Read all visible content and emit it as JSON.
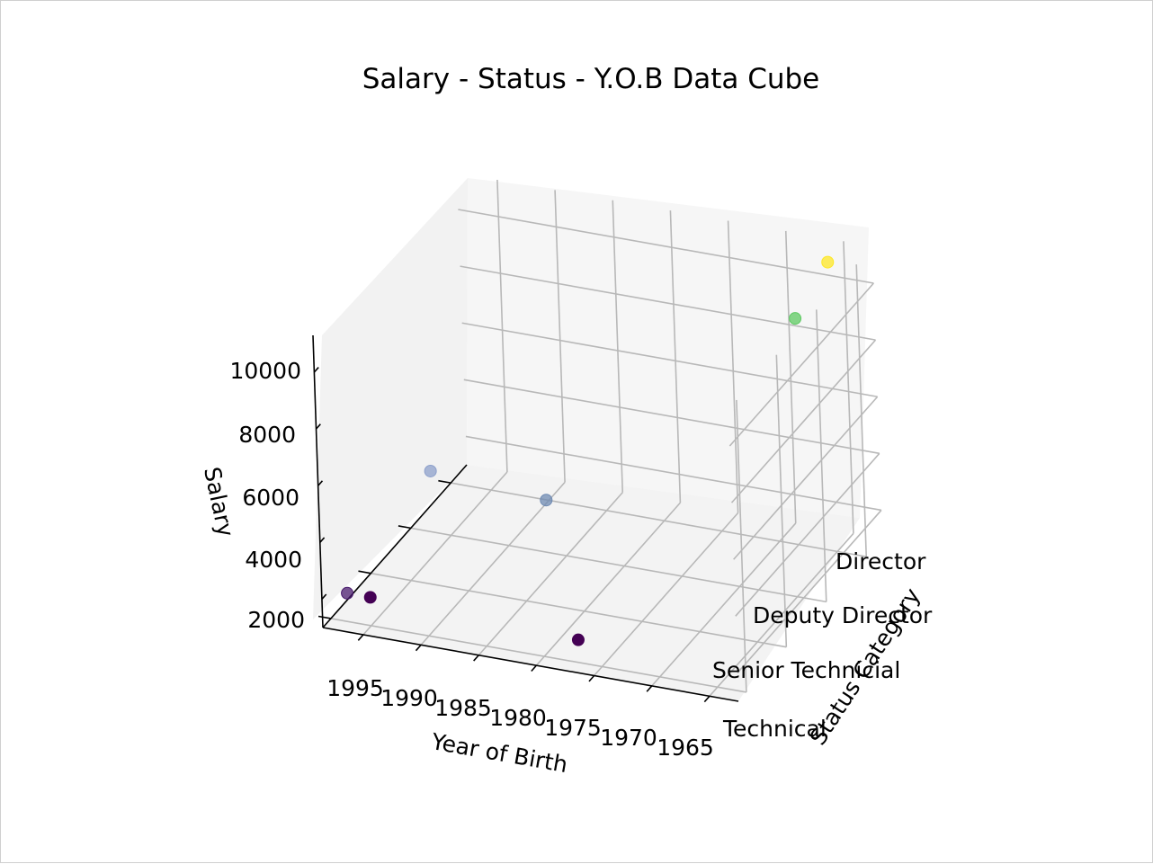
{
  "chart_data": {
    "type": "scatter",
    "title": "Salary - Status - Y.O.B Data Cube",
    "xlabel": "Year of Birth",
    "ylabel": "Status Category",
    "zlabel": "Salary",
    "x_ticks": [
      "1995",
      "1990",
      "1985",
      "1980",
      "1975",
      "1970",
      "1965"
    ],
    "y_ticks": [
      "Technical",
      "Senior Technicial",
      "Deputy Director",
      "Director"
    ],
    "z_ticks": [
      "2000",
      "4000",
      "6000",
      "8000",
      "10000"
    ],
    "points": [
      {
        "year": 1997,
        "status": "Technical",
        "salary": 2000,
        "color": "#481a6c"
      },
      {
        "year": 1995,
        "status": "Technical",
        "salary": 2000,
        "color": "#440154"
      },
      {
        "year": 1977,
        "status": "Technical",
        "salary": 1800,
        "color": "#440154"
      },
      {
        "year": 1993,
        "status": "Senior Technicial",
        "salary": 5000,
        "color": "#8da0cb"
      },
      {
        "year": 1983,
        "status": "Senior Technicial",
        "salary": 4700,
        "color": "#6f8bb3"
      },
      {
        "year": 1968,
        "status": "Director",
        "salary": 9000,
        "color": "#5ec962"
      },
      {
        "year": 1965,
        "status": "Director",
        "salary": 11200,
        "color": "#fde725"
      }
    ]
  }
}
